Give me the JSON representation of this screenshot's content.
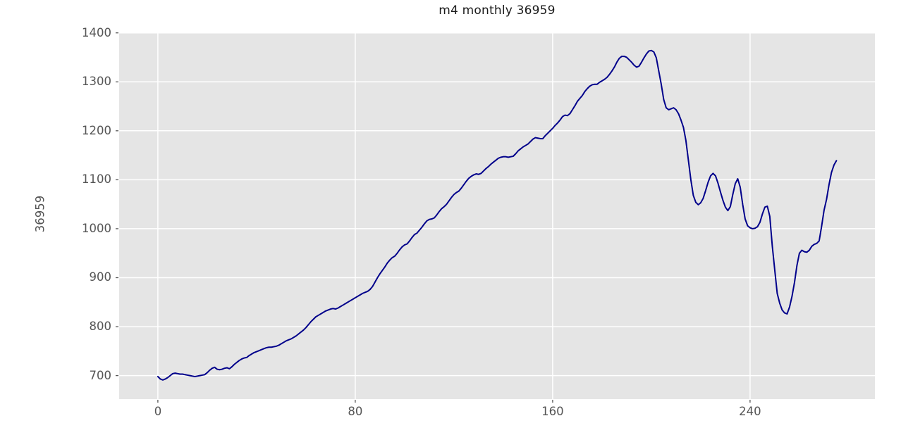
{
  "chart_data": {
    "type": "line",
    "title": "m4 monthly 36959",
    "xlabel": "",
    "ylabel": "36959",
    "legend": null,
    "grid": true,
    "style": "ggplot-gray-background",
    "x_start": 0,
    "x_step": 1,
    "xticks": [
      0,
      80,
      160,
      240
    ],
    "yticks": [
      700,
      800,
      900,
      1000,
      1100,
      1200,
      1300,
      1400
    ],
    "xlim": [
      -15.7,
      290.6
    ],
    "ylim": [
      652,
      1401
    ],
    "colors": {
      "figure_background": "#ffffff",
      "plot_background": "#e5e5e5",
      "grid": "#ffffff",
      "line": "#00008b",
      "tick_labels": "#555555",
      "axis_label": "#555555",
      "title": "#1a1a1a"
    },
    "values": [
      698,
      693,
      691,
      693,
      696,
      700,
      704,
      705,
      704,
      703,
      703,
      702,
      701,
      700,
      699,
      698,
      699,
      700,
      701,
      702,
      706,
      711,
      715,
      717,
      713,
      712,
      713,
      715,
      716,
      714,
      718,
      723,
      727,
      731,
      734,
      736,
      737,
      741,
      744,
      747,
      749,
      751,
      753,
      755,
      757,
      758,
      758,
      759,
      760,
      762,
      765,
      768,
      771,
      773,
      775,
      778,
      781,
      785,
      789,
      793,
      798,
      804,
      810,
      815,
      820,
      823,
      826,
      829,
      832,
      834,
      836,
      837,
      836,
      838,
      841,
      844,
      847,
      850,
      853,
      856,
      859,
      862,
      865,
      868,
      870,
      872,
      876,
      882,
      891,
      900,
      908,
      915,
      922,
      930,
      936,
      941,
      944,
      950,
      957,
      963,
      967,
      969,
      975,
      982,
      988,
      991,
      997,
      1003,
      1010,
      1016,
      1019,
      1020,
      1022,
      1028,
      1035,
      1041,
      1045,
      1050,
      1057,
      1064,
      1070,
      1074,
      1077,
      1083,
      1090,
      1097,
      1103,
      1107,
      1110,
      1112,
      1111,
      1113,
      1118,
      1123,
      1127,
      1132,
      1136,
      1140,
      1144,
      1146,
      1147,
      1147,
      1146,
      1147,
      1148,
      1153,
      1159,
      1163,
      1167,
      1170,
      1173,
      1178,
      1183,
      1186,
      1185,
      1184,
      1184,
      1190,
      1195,
      1200,
      1205,
      1211,
      1216,
      1222,
      1229,
      1232,
      1231,
      1235,
      1243,
      1251,
      1260,
      1266,
      1272,
      1280,
      1286,
      1291,
      1294,
      1295,
      1295,
      1299,
      1302,
      1305,
      1309,
      1315,
      1322,
      1330,
      1340,
      1348,
      1352,
      1352,
      1350,
      1345,
      1340,
      1334,
      1330,
      1332,
      1340,
      1349,
      1357,
      1363,
      1364,
      1361,
      1349,
      1322,
      1295,
      1264,
      1247,
      1243,
      1245,
      1247,
      1243,
      1235,
      1222,
      1207,
      1180,
      1140,
      1100,
      1068,
      1054,
      1049,
      1053,
      1062,
      1078,
      1095,
      1108,
      1113,
      1108,
      1093,
      1075,
      1058,
      1044,
      1037,
      1045,
      1070,
      1092,
      1102,
      1085,
      1050,
      1020,
      1006,
      1002,
      1000,
      1001,
      1004,
      1013,
      1030,
      1044,
      1046,
      1025,
      965,
      916,
      868,
      848,
      834,
      828,
      826,
      840,
      862,
      890,
      925,
      950,
      956,
      953,
      952,
      956,
      964,
      968,
      970,
      975,
      1005,
      1038,
      1060,
      1090,
      1115,
      1130,
      1139
    ]
  }
}
